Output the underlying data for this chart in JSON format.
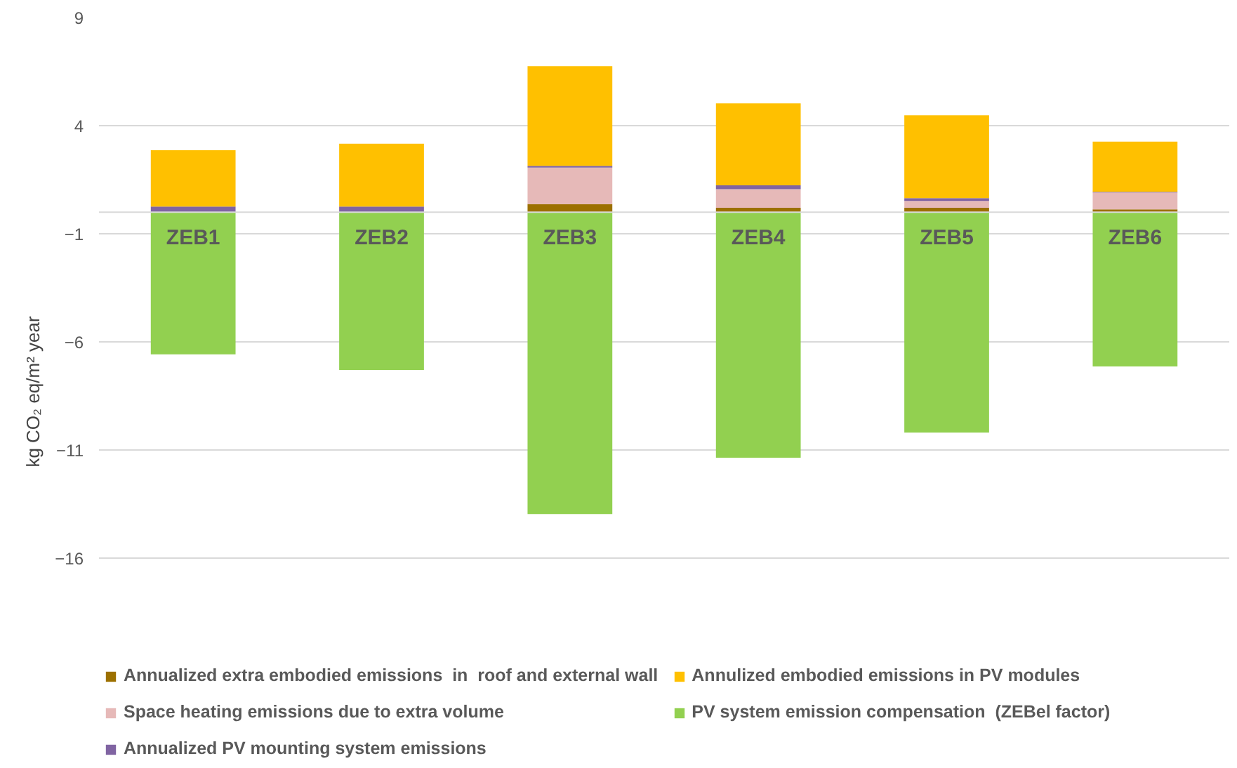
{
  "chart_data": {
    "type": "bar",
    "stacked": true,
    "ylabel": "kg CO₂ eq/m² year",
    "categories": [
      "ZEB1",
      "ZEB2",
      "ZEB3",
      "ZEB4",
      "ZEB5",
      "ZEB6"
    ],
    "series": [
      {
        "name": "Annualized extra embodied emissions  in  roof and external wall",
        "color": "#9c7000",
        "values": [
          0,
          0,
          0.37,
          0.2,
          0.2,
          0.13
        ]
      },
      {
        "name": "Space heating emissions due to extra volume",
        "color": "#e6b9b8",
        "values": [
          0,
          0,
          1.69,
          0.86,
          0.32,
          0.78
        ]
      },
      {
        "name": "Annualized PV mounting system emissions",
        "color": "#8064a2",
        "values": [
          0.26,
          0.26,
          0.08,
          0.18,
          0.13,
          0.03
        ]
      },
      {
        "name": "Annulized embodied emissions in PV modules",
        "color": "#ffc000",
        "values": [
          2.6,
          2.9,
          4.61,
          3.79,
          3.83,
          2.32
        ]
      },
      {
        "name": "PV system emission compensation  (ZEBel factor)",
        "color": "#92d050",
        "values": [
          -6.58,
          -7.3,
          -13.96,
          -11.36,
          -10.2,
          -7.14
        ]
      }
    ],
    "ylim": [
      -16,
      9
    ],
    "yticks": [
      9,
      4,
      -1,
      -6,
      -11,
      -16
    ],
    "grid": "y",
    "legend": "bottom"
  }
}
